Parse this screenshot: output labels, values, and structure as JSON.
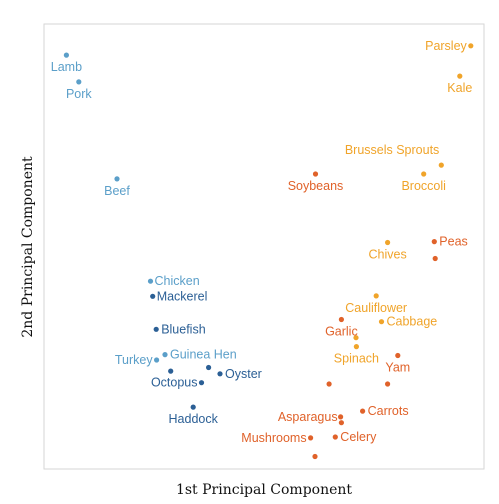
{
  "colors": {
    "light_blue": "#5b9fc9",
    "dark_blue": "#2b5f95",
    "orange": "#e0622a",
    "amber": "#f0a42a"
  },
  "chart_data": {
    "type": "scatter",
    "title": "",
    "xlabel": "1st Principal Component",
    "ylabel": "2nd Principal Component",
    "xlim": [
      0,
      100
    ],
    "ylim": [
      0,
      100
    ],
    "grid": false,
    "legend": "none",
    "points": [
      {
        "label": "Lamb",
        "x": 5.1,
        "y": 93.0,
        "color": "light_blue",
        "anchor": "middle",
        "dx": 0,
        "dy": 16
      },
      {
        "label": "Pork",
        "x": 7.9,
        "y": 87.0,
        "color": "light_blue",
        "anchor": "middle",
        "dx": 0,
        "dy": 16
      },
      {
        "label": "Beef",
        "x": 16.6,
        "y": 65.2,
        "color": "light_blue",
        "anchor": "middle",
        "dx": 0,
        "dy": 16
      },
      {
        "label": "Chicken",
        "x": 24.2,
        "y": 42.2,
        "color": "light_blue",
        "anchor": "start",
        "dx": 4,
        "dy": 4
      },
      {
        "label": "Mackerel",
        "x": 24.7,
        "y": 38.8,
        "color": "dark_blue",
        "anchor": "start",
        "dx": 4,
        "dy": 4
      },
      {
        "label": "Bluefish",
        "x": 25.5,
        "y": 31.4,
        "color": "dark_blue",
        "anchor": "start",
        "dx": 5,
        "dy": 4
      },
      {
        "label": "Guinea Hen",
        "x": 27.5,
        "y": 25.7,
        "color": "light_blue",
        "anchor": "start",
        "dx": 5,
        "dy": 4
      },
      {
        "label": "Turkey",
        "x": 25.6,
        "y": 24.5,
        "color": "light_blue",
        "anchor": "end",
        "dx": -4,
        "dy": 4
      },
      {
        "label": "Oyster",
        "x": 40.0,
        "y": 21.4,
        "color": "dark_blue",
        "anchor": "start",
        "dx": 5,
        "dy": 4
      },
      {
        "label": "",
        "x": 37.4,
        "y": 22.8,
        "color": "dark_blue",
        "anchor": "start",
        "dx": 0,
        "dy": 0
      },
      {
        "label": "",
        "x": 28.8,
        "y": 22.0,
        "color": "dark_blue",
        "anchor": "start",
        "dx": 0,
        "dy": 0
      },
      {
        "label": "Octopus",
        "x": 35.8,
        "y": 19.4,
        "color": "dark_blue",
        "anchor": "end",
        "dx": -4,
        "dy": 4
      },
      {
        "label": "Haddock",
        "x": 33.9,
        "y": 13.9,
        "color": "dark_blue",
        "anchor": "middle",
        "dx": 0,
        "dy": 16
      },
      {
        "label": "Parsley",
        "x": 97.0,
        "y": 95.1,
        "color": "amber",
        "anchor": "end",
        "dx": -4,
        "dy": 4
      },
      {
        "label": "Kale",
        "x": 94.5,
        "y": 88.3,
        "color": "amber",
        "anchor": "middle",
        "dx": 0,
        "dy": 16
      },
      {
        "label": "Brussels Sprouts",
        "x": 90.3,
        "y": 68.3,
        "color": "amber",
        "anchor": "end",
        "dx": -2,
        "dy": -11
      },
      {
        "label": "Broccoli",
        "x": 86.3,
        "y": 66.3,
        "color": "amber",
        "anchor": "middle",
        "dx": 0,
        "dy": 16
      },
      {
        "label": "Soybeans",
        "x": 61.7,
        "y": 66.3,
        "color": "orange",
        "anchor": "middle",
        "dx": 0,
        "dy": 16
      },
      {
        "label": "Peas",
        "x": 88.7,
        "y": 51.1,
        "color": "orange",
        "anchor": "start",
        "dx": 5,
        "dy": 4
      },
      {
        "label": "",
        "x": 88.9,
        "y": 47.3,
        "color": "orange",
        "anchor": "start",
        "dx": 0,
        "dy": 0
      },
      {
        "label": "Chives",
        "x": 78.1,
        "y": 50.9,
        "color": "amber",
        "anchor": "middle",
        "dx": 0,
        "dy": 16
      },
      {
        "label": "Cauliflower",
        "x": 75.5,
        "y": 38.9,
        "color": "amber",
        "anchor": "middle",
        "dx": 0,
        "dy": 16
      },
      {
        "label": "Cabbage",
        "x": 76.7,
        "y": 33.1,
        "color": "amber",
        "anchor": "start",
        "dx": 5,
        "dy": 4
      },
      {
        "label": "Garlic",
        "x": 67.6,
        "y": 33.6,
        "color": "orange",
        "anchor": "middle",
        "dx": 0,
        "dy": 16
      },
      {
        "label": "",
        "x": 70.9,
        "y": 29.5,
        "color": "amber",
        "anchor": "start",
        "dx": 0,
        "dy": 0
      },
      {
        "label": "Spinach",
        "x": 71.0,
        "y": 27.5,
        "color": "amber",
        "anchor": "middle",
        "dx": 0,
        "dy": 16
      },
      {
        "label": "Yam",
        "x": 80.4,
        "y": 25.5,
        "color": "orange",
        "anchor": "middle",
        "dx": 0,
        "dy": 16
      },
      {
        "label": "",
        "x": 64.8,
        "y": 19.1,
        "color": "orange",
        "anchor": "start",
        "dx": 0,
        "dy": 0
      },
      {
        "label": "",
        "x": 78.1,
        "y": 19.1,
        "color": "orange",
        "anchor": "start",
        "dx": 0,
        "dy": 0
      },
      {
        "label": "Carrots",
        "x": 72.4,
        "y": 13.0,
        "color": "orange",
        "anchor": "start",
        "dx": 5,
        "dy": 4
      },
      {
        "label": "Asparagus",
        "x": 67.4,
        "y": 11.7,
        "color": "orange",
        "anchor": "end",
        "dx": -3,
        "dy": 4
      },
      {
        "label": "",
        "x": 67.6,
        "y": 10.4,
        "color": "orange",
        "anchor": "start",
        "dx": 0,
        "dy": 0
      },
      {
        "label": "Celery",
        "x": 66.2,
        "y": 7.2,
        "color": "orange",
        "anchor": "start",
        "dx": 5,
        "dy": 4
      },
      {
        "label": "Mushrooms",
        "x": 60.6,
        "y": 7.0,
        "color": "orange",
        "anchor": "end",
        "dx": -4,
        "dy": 4
      },
      {
        "label": "",
        "x": 61.6,
        "y": 2.8,
        "color": "orange",
        "anchor": "start",
        "dx": 0,
        "dy": 0
      }
    ]
  }
}
